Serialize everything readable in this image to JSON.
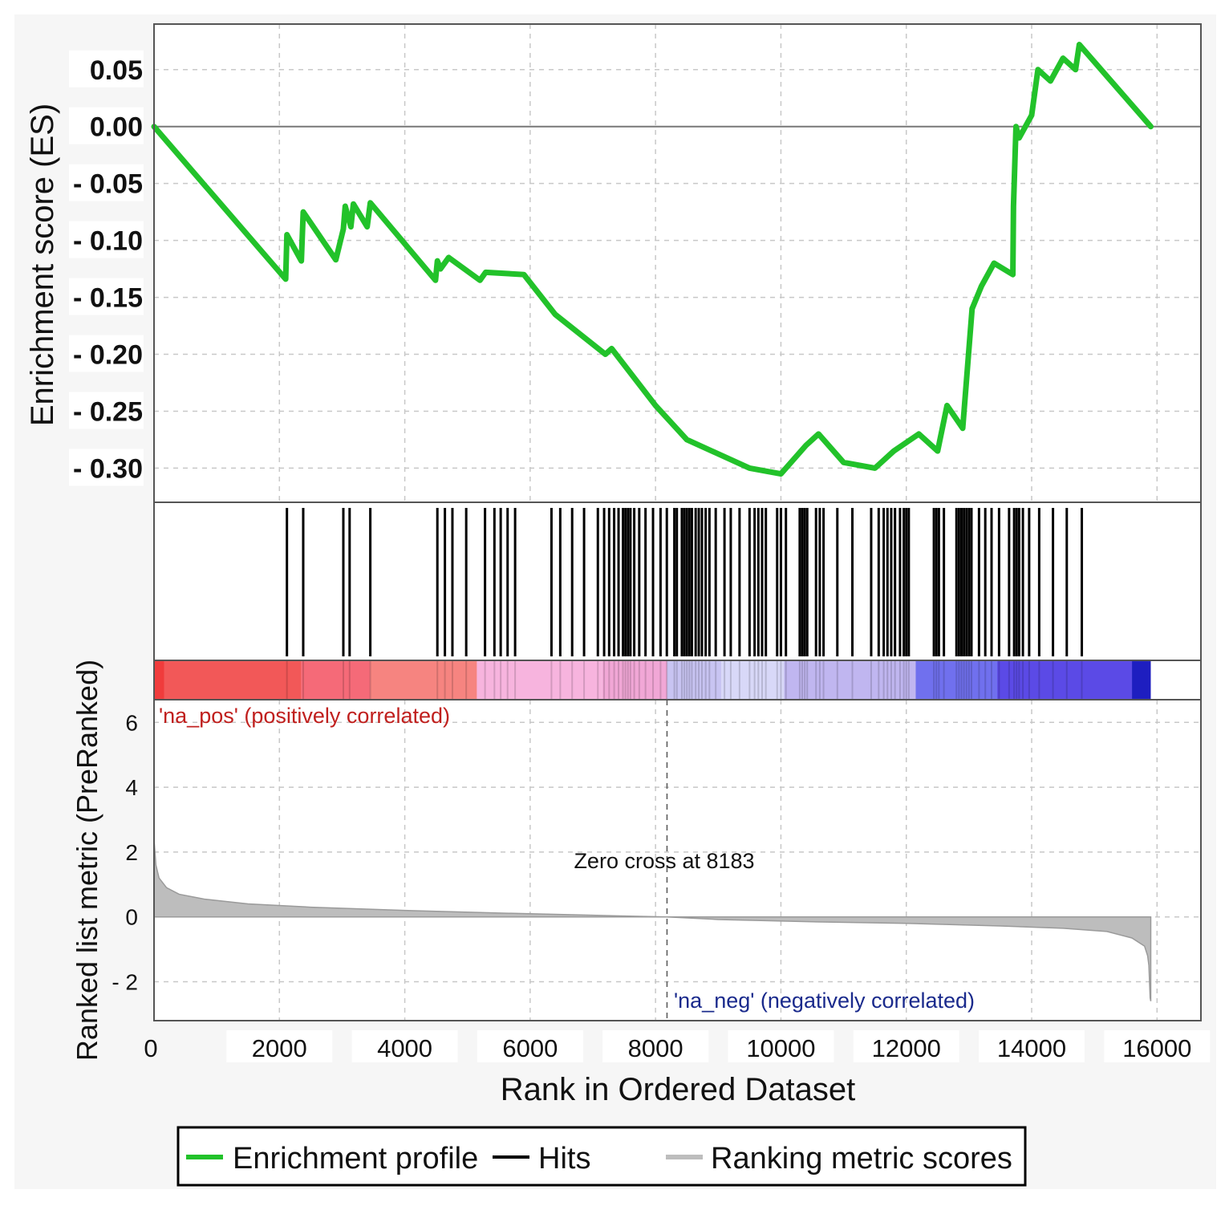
{
  "chart_data": {
    "type": "line",
    "colors": {
      "enrichment_profile": "#22c22a",
      "hits": "#000000",
      "ranking_metric": "#bdbdbd",
      "pos_band": "#f04848",
      "neg_band": "#2a2ad8",
      "pos_label": "#c0201e",
      "neg_label": "#1a2a8c"
    },
    "enrichment": {
      "ylabel": "Enrichment score (ES)",
      "ylim": [
        -0.33,
        0.09
      ],
      "y_ticks": [
        0.05,
        0.0,
        -0.05,
        -0.1,
        -0.15,
        -0.2,
        -0.25,
        -0.3
      ],
      "y_tick_labels": [
        "0.05",
        "0.00",
        "- 0.05",
        "- 0.10",
        "- 0.15",
        "- 0.20",
        "- 0.25",
        "- 0.30"
      ],
      "x": [
        0,
        2100,
        2120,
        2350,
        2380,
        2900,
        3020,
        3050,
        3140,
        3180,
        3400,
        3450,
        4490,
        4520,
        4570,
        4700,
        5200,
        5290,
        5900,
        6400,
        7200,
        7300,
        8000,
        8500,
        9500,
        10000,
        10400,
        10600,
        11000,
        11500,
        11800,
        12200,
        12500,
        12650,
        12900,
        13050,
        13200,
        13400,
        13700,
        13710,
        13750,
        13800,
        14000,
        14100,
        14300,
        14500,
        14700,
        14760,
        15900
      ],
      "y": [
        0.0,
        -0.134,
        -0.095,
        -0.118,
        -0.075,
        -0.117,
        -0.09,
        -0.07,
        -0.088,
        -0.068,
        -0.088,
        -0.067,
        -0.135,
        -0.118,
        -0.125,
        -0.115,
        -0.135,
        -0.128,
        -0.13,
        -0.165,
        -0.2,
        -0.195,
        -0.245,
        -0.275,
        -0.3,
        -0.305,
        -0.28,
        -0.27,
        -0.295,
        -0.3,
        -0.285,
        -0.27,
        -0.285,
        -0.245,
        -0.265,
        -0.16,
        -0.14,
        -0.12,
        -0.13,
        -0.07,
        0.0,
        -0.01,
        0.01,
        0.05,
        0.04,
        0.06,
        0.05,
        0.072,
        0.0
      ]
    },
    "hits": {
      "legend": "Hits",
      "positions": [
        2120,
        2380,
        3020,
        3120,
        3450,
        4520,
        4640,
        4760,
        4980,
        5280,
        5430,
        5530,
        5640,
        5760,
        6340,
        6480,
        6670,
        6860,
        7080,
        7180,
        7260,
        7340,
        7410,
        7480,
        7520,
        7560,
        7600,
        7660,
        7740,
        7840,
        7960,
        8080,
        8180,
        8300,
        8340,
        8420,
        8460,
        8500,
        8540,
        8580,
        8640,
        8690,
        8740,
        8800,
        8860,
        8960,
        9100,
        9200,
        9340,
        9500,
        9580,
        9640,
        9700,
        9760,
        9940,
        10000,
        10080,
        10300,
        10340,
        10380,
        10420,
        10560,
        10620,
        10680,
        10900,
        11140,
        11440,
        11560,
        11640,
        11700,
        11760,
        11820,
        11900,
        11960,
        12000,
        12040,
        12440,
        12480,
        12520,
        12600,
        12800,
        12840,
        12880,
        12920,
        12960,
        13000,
        13040,
        13160,
        13260,
        13360,
        13480,
        13640,
        13720,
        13760,
        13800,
        13860,
        13960,
        14120,
        14340,
        14560,
        14800
      ]
    },
    "ranking_metric": {
      "ylabel": "Ranked list metric (PreRanked)",
      "ylim": [
        -3.2,
        6.7
      ],
      "y_ticks": [
        6,
        4,
        2,
        0,
        -2
      ],
      "y_tick_labels": [
        "6",
        "4",
        "2",
        "0",
        "- 2"
      ],
      "x": [
        0,
        30,
        80,
        200,
        400,
        800,
        1500,
        2500,
        4000,
        5500,
        7000,
        8183,
        9000,
        10500,
        12000,
        13500,
        14500,
        15200,
        15600,
        15800,
        15850,
        15870,
        15880,
        15890,
        15900
      ],
      "y": [
        2.4,
        1.6,
        1.2,
        0.9,
        0.7,
        0.55,
        0.4,
        0.3,
        0.2,
        0.12,
        0.05,
        0.0,
        -0.08,
        -0.15,
        -0.2,
        -0.28,
        -0.35,
        -0.45,
        -0.65,
        -0.9,
        -1.2,
        -1.5,
        -2.0,
        -2.5,
        -2.6
      ],
      "zero_cross_label": "Zero cross at 8183",
      "zero_cross": 8183,
      "pos_label": "'na_pos' (positively correlated)",
      "neg_label": "'na_neg' (negatively correlated)"
    },
    "color_band": [
      {
        "x0": 0,
        "x1": 160,
        "color": "#f03c3c"
      },
      {
        "x0": 160,
        "x1": 2350,
        "color": "#f25858"
      },
      {
        "x0": 2350,
        "x1": 3450,
        "color": "#f56a78"
      },
      {
        "x0": 3450,
        "x1": 5150,
        "color": "#f68480"
      },
      {
        "x0": 5150,
        "x1": 7150,
        "color": "#f7b4de"
      },
      {
        "x0": 7150,
        "x1": 8183,
        "color": "#f1a7d6"
      },
      {
        "x0": 8183,
        "x1": 9050,
        "color": "#c8c4f2"
      },
      {
        "x0": 9050,
        "x1": 10050,
        "color": "#d8d8f8"
      },
      {
        "x0": 10050,
        "x1": 12150,
        "color": "#c0b6f0"
      },
      {
        "x0": 12150,
        "x1": 13450,
        "color": "#7070ee"
      },
      {
        "x0": 13450,
        "x1": 15600,
        "color": "#5b4ae6"
      },
      {
        "x0": 15600,
        "x1": 15900,
        "color": "#1e1ec0"
      }
    ],
    "x_axis": {
      "label": "Rank in Ordered Dataset",
      "xlim": [
        0,
        16700
      ],
      "ticks": [
        0,
        2000,
        4000,
        6000,
        8000,
        10000,
        12000,
        14000,
        16000
      ],
      "tick_labels": [
        "0",
        "2000",
        "4000",
        "6000",
        "8000",
        "10000",
        "12000",
        "14000",
        "16000"
      ]
    },
    "legend": {
      "placement": "bottom",
      "entries": [
        "Enrichment profile",
        "Hits",
        "Ranking metric scores"
      ]
    }
  }
}
